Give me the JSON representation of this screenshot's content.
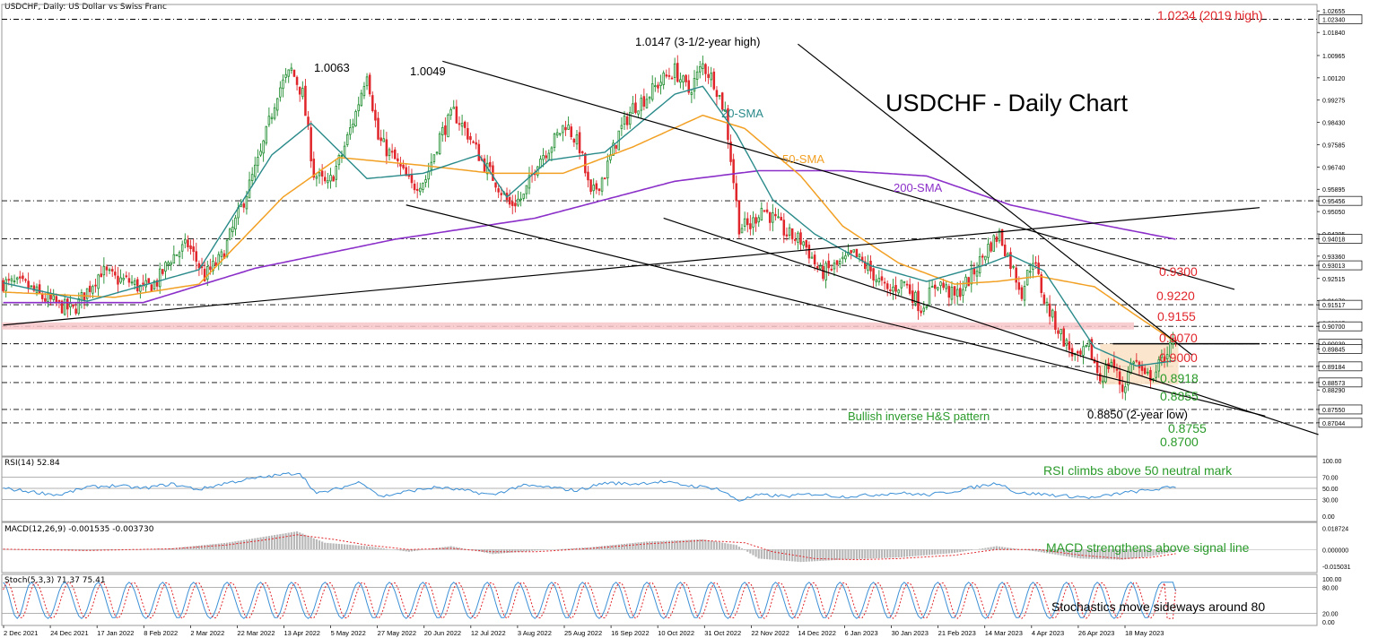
{
  "chart_data": {
    "type": "candlestick",
    "symbol": "USDCHF",
    "header": "USDCHF, Daily:  US Dollar vs Swiss Franc",
    "title": "USDCHF - Daily Chart",
    "colors": {
      "up_candle": "#1e8c2e",
      "down_candle": "#e0262b",
      "sma20": "#2a8a8a",
      "sma50": "#f2a024",
      "sma200": "#8b2fc9",
      "level_label": "#e0262b",
      "support_label": "#2a9a2a",
      "indicator_note": "#2a9a2a",
      "pattern_box": "#fbe3c8",
      "resistance_zone": "#f7c6c9",
      "rsi_line": "#3b8fd6",
      "macd_signal": "#e0262b",
      "stoch_main": "#3b8fd6",
      "stoch_signal": "#e0262b"
    },
    "x_axis": {
      "labels": [
        "2 Dec 2021",
        "24 Dec 2021",
        "17 Jan 2022",
        "8 Feb 2022",
        "2 Mar 2022",
        "22 Mar 2022",
        "13 Apr 2022",
        "5 May 2022",
        "27 May 2022",
        "20 Jun 2022",
        "12 Jul 2022",
        "3 Aug 2022",
        "25 Aug 2022",
        "16 Sep 2022",
        "10 Oct 2022",
        "31 Oct 2022",
        "22 Nov 2022",
        "14 Dec 2022",
        "6 Jan 2023",
        "30 Jan 2023",
        "21 Feb 2023",
        "14 Mar 2023",
        "4 Apr 2023",
        "26 Apr 2023",
        "18 May 2023"
      ]
    },
    "price_axis": {
      "range": [
        0.8585,
        1.029
      ],
      "ticks": [
        "1.02655",
        "1.01840",
        "1.00965",
        "1.00120",
        "0.99275",
        "0.98430",
        "0.97585",
        "0.96740",
        "0.95895",
        "0.95456",
        "0.95050",
        "0.94205",
        "0.94018",
        "0.93360",
        "0.93013",
        "0.92515",
        "0.91670",
        "0.91517",
        "0.90825",
        "0.90700",
        "0.90039",
        "0.89845",
        "0.89184",
        "0.88573",
        "0.88290",
        "0.87550",
        "0.87044"
      ],
      "highlighted_ticks": [
        "1.02340",
        "0.95456",
        "0.94018",
        "0.93013",
        "0.91517",
        "0.90700",
        "0.90039",
        "0.89845",
        "0.89184",
        "0.88573",
        "0.87550",
        "0.87044"
      ]
    },
    "close_anchors": [
      [
        0,
        0.9235
      ],
      [
        8,
        0.9225
      ],
      [
        14,
        0.918
      ],
      [
        20,
        0.915
      ],
      [
        25,
        0.913
      ],
      [
        30,
        0.9205
      ],
      [
        35,
        0.928
      ],
      [
        40,
        0.925
      ],
      [
        45,
        0.924
      ],
      [
        50,
        0.921
      ],
      [
        55,
        0.924
      ],
      [
        60,
        0.933
      ],
      [
        66,
        0.938
      ],
      [
        72,
        0.926
      ],
      [
        78,
        0.933
      ],
      [
        85,
        0.952
      ],
      [
        92,
        0.972
      ],
      [
        98,
        0.996
      ],
      [
        103,
        1.004
      ],
      [
        107,
        0.995
      ],
      [
        111,
        0.965
      ],
      [
        116,
        0.96
      ],
      [
        121,
        0.972
      ],
      [
        126,
        0.988
      ],
      [
        130,
        1.004
      ],
      [
        134,
        0.978
      ],
      [
        140,
        0.97
      ],
      [
        146,
        0.96
      ],
      [
        151,
        0.963
      ],
      [
        156,
        0.979
      ],
      [
        161,
        0.988
      ],
      [
        166,
        0.98
      ],
      [
        171,
        0.97
      ],
      [
        176,
        0.962
      ],
      [
        181,
        0.953
      ],
      [
        186,
        0.956
      ],
      [
        191,
        0.97
      ],
      [
        196,
        0.976
      ],
      [
        201,
        0.984
      ],
      [
        206,
        0.975
      ],
      [
        210,
        0.956
      ],
      [
        215,
        0.965
      ],
      [
        220,
        0.98
      ],
      [
        225,
        0.99
      ],
      [
        230,
        0.994
      ],
      [
        235,
        1.0
      ],
      [
        240,
        1.004
      ],
      [
        245,
        0.996
      ],
      [
        250,
        1.006
      ],
      [
        254,
        1.0
      ],
      [
        258,
        0.988
      ],
      [
        263,
        0.945
      ],
      [
        267,
        0.945
      ],
      [
        271,
        0.952
      ],
      [
        275,
        0.948
      ],
      [
        280,
        0.942
      ],
      [
        286,
        0.939
      ],
      [
        292,
        0.927
      ],
      [
        298,
        0.93
      ],
      [
        304,
        0.934
      ],
      [
        310,
        0.928
      ],
      [
        316,
        0.92
      ],
      [
        322,
        0.924
      ],
      [
        328,
        0.914
      ],
      [
        334,
        0.924
      ],
      [
        340,
        0.918
      ],
      [
        346,
        0.926
      ],
      [
        352,
        0.937
      ],
      [
        356,
        0.942
      ],
      [
        360,
        0.931
      ],
      [
        364,
        0.92
      ],
      [
        368,
        0.933
      ],
      [
        372,
        0.917
      ],
      [
        376,
        0.908
      ],
      [
        380,
        0.9
      ],
      [
        384,
        0.894
      ],
      [
        388,
        0.899
      ],
      [
        392,
        0.887
      ],
      [
        396,
        0.894
      ],
      [
        400,
        0.883
      ],
      [
        404,
        0.895
      ],
      [
        408,
        0.887
      ],
      [
        412,
        0.89
      ],
      [
        416,
        0.898
      ],
      [
        419,
        0.9004
      ]
    ],
    "sma_20": [
      [
        0,
        0.9235
      ],
      [
        30,
        0.9165
      ],
      [
        70,
        0.9285
      ],
      [
        96,
        0.972
      ],
      [
        110,
        0.984
      ],
      [
        130,
        0.963
      ],
      [
        150,
        0.965
      ],
      [
        170,
        0.972
      ],
      [
        180,
        0.956
      ],
      [
        195,
        0.97
      ],
      [
        215,
        0.973
      ],
      [
        240,
        0.995
      ],
      [
        250,
        0.998
      ],
      [
        262,
        0.98
      ],
      [
        275,
        0.955
      ],
      [
        290,
        0.942
      ],
      [
        310,
        0.93
      ],
      [
        330,
        0.924
      ],
      [
        350,
        0.93
      ],
      [
        360,
        0.934
      ],
      [
        372,
        0.928
      ],
      [
        390,
        0.899
      ],
      [
        405,
        0.892
      ],
      [
        419,
        0.894
      ]
    ],
    "sma_50": [
      [
        0,
        0.92
      ],
      [
        40,
        0.918
      ],
      [
        70,
        0.923
      ],
      [
        100,
        0.956
      ],
      [
        120,
        0.971
      ],
      [
        150,
        0.968
      ],
      [
        175,
        0.965
      ],
      [
        200,
        0.965
      ],
      [
        225,
        0.975
      ],
      [
        250,
        0.987
      ],
      [
        265,
        0.982
      ],
      [
        285,
        0.964
      ],
      [
        300,
        0.945
      ],
      [
        320,
        0.931
      ],
      [
        340,
        0.923
      ],
      [
        355,
        0.924
      ],
      [
        370,
        0.926
      ],
      [
        390,
        0.922
      ],
      [
        405,
        0.911
      ],
      [
        419,
        0.901
      ]
    ],
    "sma_200": [
      [
        0,
        0.916
      ],
      [
        50,
        0.916
      ],
      [
        90,
        0.929
      ],
      [
        140,
        0.94
      ],
      [
        190,
        0.948
      ],
      [
        240,
        0.962
      ],
      [
        270,
        0.966
      ],
      [
        300,
        0.966
      ],
      [
        330,
        0.964
      ],
      [
        360,
        0.953
      ],
      [
        390,
        0.946
      ],
      [
        419,
        0.94
      ]
    ],
    "trendlines": [
      {
        "name": "rising-trendline",
        "points": [
          [
            0,
            0.9075
          ],
          [
            449,
            0.952
          ]
        ]
      },
      {
        "name": "falling-resistance-outer",
        "points": [
          [
            157,
            1.0075
          ],
          [
            440,
            0.921
          ]
        ]
      },
      {
        "name": "falling-resistance-steep",
        "points": [
          [
            284,
            1.014
          ],
          [
            425,
            0.896
          ]
        ]
      },
      {
        "name": "falling-support-upper",
        "points": [
          [
            144,
            0.953
          ],
          [
            451,
            0.873
          ]
        ]
      },
      {
        "name": "falling-support-lower",
        "points": [
          [
            236,
            0.948
          ],
          [
            470,
            0.866
          ]
        ]
      }
    ],
    "horizontal_levels": [
      1.0234,
      0.9546,
      0.9402,
      0.9301,
      0.9152,
      0.907,
      0.9004,
      0.8918,
      0.8857,
      0.8755,
      0.8704
    ],
    "pattern_box": {
      "x": [
        392,
        420
      ],
      "price": [
        0.9004,
        0.885
      ]
    },
    "neckline": {
      "x": [
        419,
        449
      ],
      "price": 0.9004
    },
    "annotations": [
      {
        "text": "1.0234 (2019 high)",
        "color": "red"
      },
      {
        "text": "1.0147 (3-1/2-year high)",
        "color": "black"
      },
      {
        "text": "1.0063",
        "color": "black"
      },
      {
        "text": "1.0049",
        "color": "black"
      },
      {
        "text": "20-SMA",
        "color": "teal"
      },
      {
        "text": "50-SMA",
        "color": "orange"
      },
      {
        "text": "200-SMA",
        "color": "purple"
      },
      {
        "text": "0.9300",
        "color": "red"
      },
      {
        "text": "0.9220",
        "color": "red"
      },
      {
        "text": "0.9155",
        "color": "red"
      },
      {
        "text": "0.9070",
        "color": "red"
      },
      {
        "text": "0.9000",
        "color": "red"
      },
      {
        "text": "0.8918",
        "color": "green"
      },
      {
        "text": "0.8855",
        "color": "green"
      },
      {
        "text": "0.8850 (2-year low)",
        "color": "black"
      },
      {
        "text": "0.8755",
        "color": "green"
      },
      {
        "text": "0.8700",
        "color": "green"
      },
      {
        "text": "Bullish inverse H&S pattern",
        "color": "green"
      }
    ],
    "rsi": {
      "header": "RSI(14) 52.84",
      "range": [
        0,
        100
      ],
      "ticks": [
        "100.00",
        "70.00",
        "50.00",
        "30.00",
        "0.00"
      ],
      "levels": [
        70,
        50,
        30
      ],
      "note": "RSI climbs above 50 neutral mark",
      "anchors": [
        [
          0,
          50
        ],
        [
          10,
          44
        ],
        [
          20,
          38
        ],
        [
          30,
          52
        ],
        [
          40,
          55
        ],
        [
          50,
          50
        ],
        [
          60,
          58
        ],
        [
          70,
          48
        ],
        [
          80,
          60
        ],
        [
          90,
          68
        ],
        [
          100,
          75
        ],
        [
          106,
          78
        ],
        [
          112,
          40
        ],
        [
          120,
          50
        ],
        [
          128,
          62
        ],
        [
          135,
          35
        ],
        [
          145,
          45
        ],
        [
          155,
          52
        ],
        [
          165,
          46
        ],
        [
          175,
          38
        ],
        [
          185,
          55
        ],
        [
          195,
          52
        ],
        [
          205,
          46
        ],
        [
          215,
          60
        ],
        [
          225,
          58
        ],
        [
          235,
          62
        ],
        [
          245,
          55
        ],
        [
          255,
          50
        ],
        [
          263,
          28
        ],
        [
          270,
          38
        ],
        [
          280,
          36
        ],
        [
          290,
          40
        ],
        [
          300,
          35
        ],
        [
          310,
          38
        ],
        [
          320,
          42
        ],
        [
          330,
          38
        ],
        [
          340,
          45
        ],
        [
          350,
          55
        ],
        [
          356,
          60
        ],
        [
          362,
          42
        ],
        [
          370,
          40
        ],
        [
          380,
          36
        ],
        [
          390,
          33
        ],
        [
          400,
          42
        ],
        [
          410,
          47
        ],
        [
          419,
          53
        ]
      ]
    },
    "macd": {
      "header": "MACD(12,26,9) -0.001535 -0.003730",
      "range": [
        -0.018,
        0.02
      ],
      "ticks": [
        "0.018724",
        "0.000000",
        "-0.015031"
      ],
      "note": "MACD strengthens above signal line",
      "histogram_anchors": [
        [
          0,
          0.0005
        ],
        [
          30,
          -0.001
        ],
        [
          60,
          0.001
        ],
        [
          80,
          0.006
        ],
        [
          95,
          0.012
        ],
        [
          105,
          0.016
        ],
        [
          115,
          0.006
        ],
        [
          130,
          0.003
        ],
        [
          145,
          -0.002
        ],
        [
          160,
          0.003
        ],
        [
          175,
          -0.004
        ],
        [
          190,
          -0.001
        ],
        [
          210,
          0.002
        ],
        [
          230,
          0.007
        ],
        [
          250,
          0.009
        ],
        [
          262,
          0.004
        ],
        [
          270,
          -0.008
        ],
        [
          285,
          -0.011
        ],
        [
          300,
          -0.009
        ],
        [
          320,
          -0.007
        ],
        [
          340,
          -0.003
        ],
        [
          355,
          0.003
        ],
        [
          370,
          -0.002
        ],
        [
          385,
          -0.008
        ],
        [
          400,
          -0.009
        ],
        [
          410,
          -0.006
        ],
        [
          419,
          -0.0015
        ]
      ],
      "signal_anchors": [
        [
          0,
          0.0003
        ],
        [
          30,
          -0.0008
        ],
        [
          60,
          0.0006
        ],
        [
          80,
          0.004
        ],
        [
          95,
          0.009
        ],
        [
          105,
          0.013
        ],
        [
          118,
          0.009
        ],
        [
          130,
          0.004
        ],
        [
          145,
          0.0
        ],
        [
          160,
          0.001
        ],
        [
          175,
          -0.002
        ],
        [
          190,
          -0.002
        ],
        [
          210,
          0.001
        ],
        [
          230,
          0.005
        ],
        [
          250,
          0.008
        ],
        [
          265,
          0.006
        ],
        [
          275,
          -0.002
        ],
        [
          290,
          -0.008
        ],
        [
          305,
          -0.009
        ],
        [
          320,
          -0.008
        ],
        [
          340,
          -0.005
        ],
        [
          355,
          0.0
        ],
        [
          370,
          0.0
        ],
        [
          385,
          -0.005
        ],
        [
          400,
          -0.008
        ],
        [
          410,
          -0.007
        ],
        [
          419,
          -0.0037
        ]
      ]
    },
    "stochastic": {
      "header": "Stoch(5,3,3) 71.37 75.41",
      "range": [
        0,
        100
      ],
      "ticks": [
        "100.00",
        "80.00",
        "20.00",
        "0.00"
      ],
      "levels": [
        80,
        20
      ],
      "note": "Stochastics move sideways around 80",
      "cycle_peaks": [
        0,
        10,
        22,
        34,
        45,
        57,
        68,
        80,
        92,
        103,
        115,
        127,
        138,
        150,
        161,
        173,
        184,
        196,
        207,
        219,
        230,
        242,
        253,
        265,
        276,
        288,
        299,
        311,
        322,
        334,
        345,
        357,
        368,
        380,
        391,
        403,
        414
      ],
      "end_values": {
        "main": 71.37,
        "signal": 75.41
      }
    }
  }
}
